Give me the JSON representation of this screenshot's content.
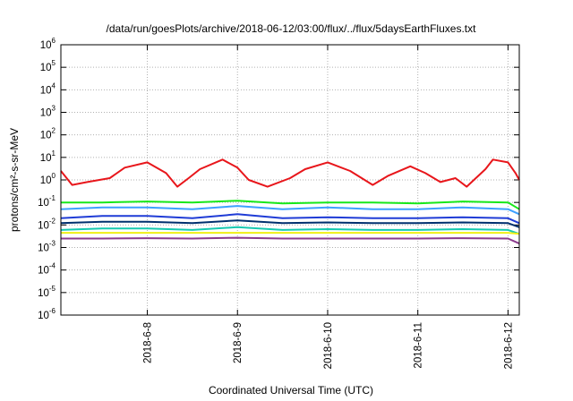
{
  "chart_data": {
    "type": "line",
    "title": "/data/run/goesPlots/archive/2018-06-12/03:00/flux/../flux/5daysEarthFluxes.txt",
    "xlabel": "Coordinated Universal Time (UTC)",
    "ylabel": "protons/cm²-s-sr-MeV",
    "y_scale": "log",
    "ylim": [
      1e-06,
      1000000.0
    ],
    "xlim": [
      "2018-06-07T01:00",
      "2018-06-12T03:00"
    ],
    "grid": true,
    "legend": "none",
    "x_ticks": [
      "2018-6-8",
      "2018-6-9",
      "2018-6-10",
      "2018-6-11",
      "2018-6-12"
    ],
    "x_tick_times": [
      "2018-06-08T00:00",
      "2018-06-09T00:00",
      "2018-06-10T00:00",
      "2018-06-11T00:00",
      "2018-06-12T00:00"
    ],
    "y_ticks": [
      {
        "base": "10",
        "exp": "6"
      },
      {
        "base": "10",
        "exp": "5"
      },
      {
        "base": "10",
        "exp": "4"
      },
      {
        "base": "10",
        "exp": "3"
      },
      {
        "base": "10",
        "exp": "2"
      },
      {
        "base": "10",
        "exp": "1"
      },
      {
        "base": "10",
        "exp": "0"
      },
      {
        "base": "10",
        "exp": "-1"
      },
      {
        "base": "10",
        "exp": "-2"
      },
      {
        "base": "10",
        "exp": "-3"
      },
      {
        "base": "10",
        "exp": "-4"
      },
      {
        "base": "10",
        "exp": "-5"
      },
      {
        "base": "10",
        "exp": "-6"
      }
    ],
    "series": [
      {
        "color": "#e8161b",
        "x": [
          "2018-06-07T01:00",
          "2018-06-07T04:00",
          "2018-06-07T08:00",
          "2018-06-07T14:00",
          "2018-06-07T18:00",
          "2018-06-08T00:00",
          "2018-06-08T05:00",
          "2018-06-08T08:00",
          "2018-06-08T11:00",
          "2018-06-08T14:00",
          "2018-06-08T20:00",
          "2018-06-09T00:00",
          "2018-06-09T03:00",
          "2018-06-09T08:00",
          "2018-06-09T14:00",
          "2018-06-09T18:00",
          "2018-06-10T00:00",
          "2018-06-10T06:00",
          "2018-06-10T12:00",
          "2018-06-10T16:00",
          "2018-06-10T22:00",
          "2018-06-11T02:00",
          "2018-06-11T06:00",
          "2018-06-11T10:00",
          "2018-06-11T13:00",
          "2018-06-11T18:00",
          "2018-06-11T20:00",
          "2018-06-12T00:00",
          "2018-06-12T02:00",
          "2018-06-12T03:00"
        ],
        "y": [
          2.5,
          0.6,
          0.8,
          1.2,
          3.5,
          6,
          2,
          0.5,
          1.2,
          3,
          8,
          3.5,
          1,
          0.5,
          1.2,
          3,
          6,
          2.5,
          0.6,
          1.5,
          4,
          2,
          0.8,
          1.2,
          0.5,
          3,
          8,
          6,
          2,
          1
        ]
      },
      {
        "color": "#17e81a",
        "x": [
          "2018-06-07T01:00",
          "2018-06-07T12:00",
          "2018-06-08T00:00",
          "2018-06-08T12:00",
          "2018-06-09T00:00",
          "2018-06-09T12:00",
          "2018-06-10T00:00",
          "2018-06-10T12:00",
          "2018-06-11T00:00",
          "2018-06-11T12:00",
          "2018-06-12T00:00",
          "2018-06-12T03:00"
        ],
        "y": [
          0.1,
          0.1,
          0.11,
          0.1,
          0.12,
          0.09,
          0.1,
          0.1,
          0.09,
          0.11,
          0.1,
          0.05
        ]
      },
      {
        "color": "#3da0ff",
        "x": [
          "2018-06-07T01:00",
          "2018-06-07T12:00",
          "2018-06-08T00:00",
          "2018-06-08T12:00",
          "2018-06-09T00:00",
          "2018-06-09T12:00",
          "2018-06-10T00:00",
          "2018-06-10T12:00",
          "2018-06-11T00:00",
          "2018-06-11T12:00",
          "2018-06-12T00:00",
          "2018-06-12T03:00"
        ],
        "y": [
          0.05,
          0.06,
          0.06,
          0.05,
          0.07,
          0.05,
          0.06,
          0.05,
          0.05,
          0.06,
          0.05,
          0.03
        ]
      },
      {
        "color": "#1f3cd6",
        "x": [
          "2018-06-07T01:00",
          "2018-06-07T12:00",
          "2018-06-08T00:00",
          "2018-06-08T12:00",
          "2018-06-09T00:00",
          "2018-06-09T12:00",
          "2018-06-10T00:00",
          "2018-06-10T12:00",
          "2018-06-11T00:00",
          "2018-06-11T12:00",
          "2018-06-12T00:00",
          "2018-06-12T03:00"
        ],
        "y": [
          0.02,
          0.025,
          0.025,
          0.02,
          0.03,
          0.02,
          0.022,
          0.02,
          0.02,
          0.022,
          0.02,
          0.012
        ]
      },
      {
        "color": "#00306e",
        "x": [
          "2018-06-07T01:00",
          "2018-06-07T12:00",
          "2018-06-08T00:00",
          "2018-06-08T12:00",
          "2018-06-09T00:00",
          "2018-06-09T12:00",
          "2018-06-10T00:00",
          "2018-06-10T12:00",
          "2018-06-11T00:00",
          "2018-06-11T12:00",
          "2018-06-12T00:00",
          "2018-06-12T03:00"
        ],
        "y": [
          0.012,
          0.014,
          0.014,
          0.012,
          0.016,
          0.012,
          0.013,
          0.012,
          0.012,
          0.013,
          0.012,
          0.008
        ]
      },
      {
        "color": "#16c9b0",
        "x": [
          "2018-06-07T01:00",
          "2018-06-07T12:00",
          "2018-06-08T00:00",
          "2018-06-08T12:00",
          "2018-06-09T00:00",
          "2018-06-09T12:00",
          "2018-06-10T00:00",
          "2018-06-10T12:00",
          "2018-06-11T00:00",
          "2018-06-11T12:00",
          "2018-06-12T00:00",
          "2018-06-12T03:00"
        ],
        "y": [
          0.006,
          0.007,
          0.007,
          0.006,
          0.008,
          0.006,
          0.0065,
          0.006,
          0.006,
          0.0065,
          0.006,
          0.004
        ]
      },
      {
        "color": "#f0f015",
        "x": [
          "2018-06-07T01:00",
          "2018-06-07T12:00",
          "2018-06-08T00:00",
          "2018-06-08T12:00",
          "2018-06-09T00:00",
          "2018-06-09T12:00",
          "2018-06-10T00:00",
          "2018-06-10T12:00",
          "2018-06-11T00:00",
          "2018-06-11T12:00",
          "2018-06-12T00:00",
          "2018-06-12T03:00"
        ],
        "y": [
          0.0045,
          0.0045,
          0.0045,
          0.0045,
          0.0045,
          0.0045,
          0.0045,
          0.0045,
          0.0045,
          0.0045,
          0.0045,
          0.004
        ]
      },
      {
        "color": "#8a3a8c",
        "x": [
          "2018-06-07T01:00",
          "2018-06-07T12:00",
          "2018-06-08T00:00",
          "2018-06-08T12:00",
          "2018-06-09T00:00",
          "2018-06-09T12:00",
          "2018-06-10T00:00",
          "2018-06-10T12:00",
          "2018-06-11T00:00",
          "2018-06-11T12:00",
          "2018-06-12T00:00",
          "2018-06-12T03:00"
        ],
        "y": [
          0.0025,
          0.0025,
          0.0026,
          0.0025,
          0.0027,
          0.0025,
          0.0025,
          0.0025,
          0.0025,
          0.0026,
          0.0025,
          0.0015
        ]
      }
    ]
  }
}
